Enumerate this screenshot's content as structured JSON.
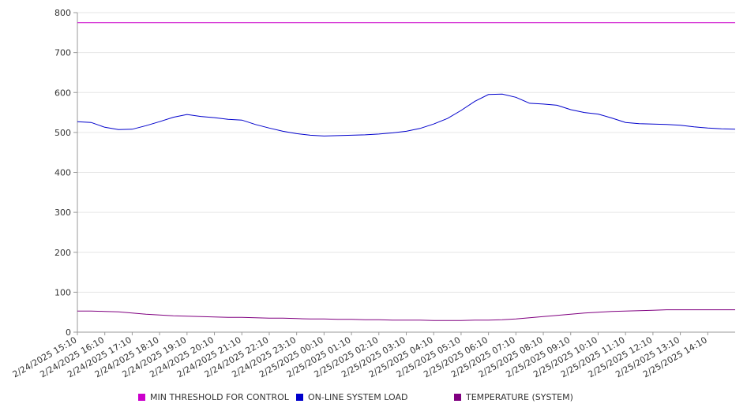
{
  "chart_data": {
    "type": "line",
    "title": "",
    "xlabel": "",
    "ylabel": "",
    "ylim": [
      0,
      800
    ],
    "yticks": [
      0,
      100,
      200,
      300,
      400,
      500,
      600,
      700,
      800
    ],
    "grid": true,
    "legend_position": "bottom",
    "x_tick_labels": [
      "2/24/2025 15:10",
      "2/24/2025 16:10",
      "2/24/2025 17:10",
      "2/24/2025 18:10",
      "2/24/2025 19:10",
      "2/24/2025 20:10",
      "2/24/2025 21:10",
      "2/24/2025 22:10",
      "2/24/2025 23:10",
      "2/25/2025 00:10",
      "2/25/2025 01:10",
      "2/25/2025 02:10",
      "2/25/2025 03:10",
      "2/25/2025 04:10",
      "2/25/2025 05:10",
      "2/25/2025 06:10",
      "2/25/2025 07:10",
      "2/25/2025 08:10",
      "2/25/2025 09:10",
      "2/25/2025 10:10",
      "2/25/2025 11:10",
      "2/25/2025 12:10",
      "2/25/2025 13:10",
      "2/25/2025 14:10"
    ],
    "x": [
      "2/24/2025 15:10",
      "2/24/2025 15:40",
      "2/24/2025 16:10",
      "2/24/2025 16:40",
      "2/24/2025 17:10",
      "2/24/2025 17:40",
      "2/24/2025 18:10",
      "2/24/2025 18:40",
      "2/24/2025 19:10",
      "2/24/2025 19:40",
      "2/24/2025 20:10",
      "2/24/2025 20:40",
      "2/24/2025 21:10",
      "2/24/2025 21:40",
      "2/24/2025 22:10",
      "2/24/2025 22:40",
      "2/24/2025 23:10",
      "2/24/2025 23:40",
      "2/25/2025 00:10",
      "2/25/2025 00:40",
      "2/25/2025 01:10",
      "2/25/2025 01:40",
      "2/25/2025 02:10",
      "2/25/2025 02:40",
      "2/25/2025 03:10",
      "2/25/2025 03:40",
      "2/25/2025 04:10",
      "2/25/2025 04:40",
      "2/25/2025 05:10",
      "2/25/2025 05:40",
      "2/25/2025 06:10",
      "2/25/2025 06:40",
      "2/25/2025 07:10",
      "2/25/2025 07:40",
      "2/25/2025 08:10",
      "2/25/2025 08:40",
      "2/25/2025 09:10",
      "2/25/2025 09:40",
      "2/25/2025 10:10",
      "2/25/2025 10:40",
      "2/25/2025 11:10",
      "2/25/2025 11:40",
      "2/25/2025 12:10",
      "2/25/2025 12:40",
      "2/25/2025 13:10",
      "2/25/2025 13:40",
      "2/25/2025 14:10",
      "2/25/2025 14:40",
      "2/25/2025 15:10"
    ],
    "series": [
      {
        "name": "MIN THRESHOLD FOR CONTROL",
        "color": "#cc00cc",
        "values": [
          775,
          775,
          775,
          775,
          775,
          775,
          775,
          775,
          775,
          775,
          775,
          775,
          775,
          775,
          775,
          775,
          775,
          775,
          775,
          775,
          775,
          775,
          775,
          775,
          775,
          775,
          775,
          775,
          775,
          775,
          775,
          775,
          775,
          775,
          775,
          775,
          775,
          775,
          775,
          775,
          775,
          775,
          775,
          775,
          775,
          775,
          775,
          775,
          775
        ]
      },
      {
        "name": "ON-LINE SYSTEM LOAD",
        "color": "#0000cc",
        "values": [
          527,
          525,
          513,
          507,
          508,
          517,
          527,
          538,
          545,
          540,
          537,
          533,
          531,
          520,
          511,
          503,
          497,
          493,
          491,
          492,
          493,
          494,
          496,
          499,
          503,
          510,
          521,
          535,
          555,
          578,
          595,
          596,
          588,
          573,
          571,
          568,
          557,
          550,
          546,
          536,
          525,
          522,
          521,
          520,
          518,
          514,
          511,
          509,
          508
        ]
      },
      {
        "name": "TEMPERATURE (SYSTEM)",
        "color": "#800080",
        "values": [
          53,
          53,
          52,
          51,
          48,
          45,
          43,
          41,
          40,
          39,
          38,
          37,
          37,
          36,
          35,
          35,
          34,
          33,
          33,
          32,
          32,
          31,
          31,
          30,
          30,
          30,
          29,
          29,
          29,
          30,
          30,
          31,
          33,
          36,
          39,
          42,
          45,
          48,
          50,
          52,
          53,
          54,
          55,
          56,
          56,
          56,
          56,
          56,
          56
        ]
      }
    ]
  }
}
